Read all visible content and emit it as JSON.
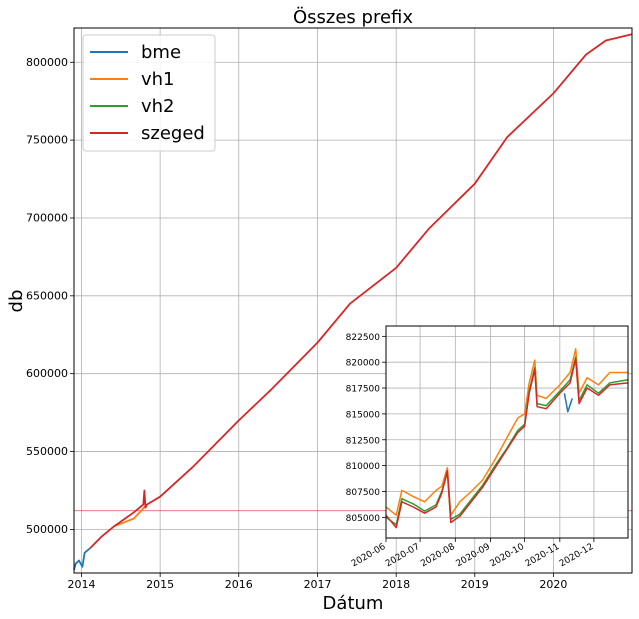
{
  "chart_data": [
    {
      "type": "line",
      "title": "Összes prefix",
      "xlabel": "Dátum",
      "ylabel": "db",
      "x_range": [
        "2013-11-27",
        "2020-12-31"
      ],
      "ylim": [
        472000,
        822000
      ],
      "x_ticks": [
        "2014",
        "2015",
        "2016",
        "2017",
        "2018",
        "2019",
        "2020"
      ],
      "y_ticks": [
        500000,
        550000,
        600000,
        650000,
        700000,
        750000,
        800000
      ],
      "grid": true,
      "legend_position": "top-left",
      "reference_line": {
        "y": 512000,
        "color": "#d62728"
      },
      "series": [
        {
          "name": "bme",
          "color": "#1f77b4",
          "points": [
            [
              "2013-11-27",
              474000
            ],
            [
              "2013-12-05",
              478000
            ],
            [
              "2013-12-20",
              480000
            ],
            [
              "2014-01-05",
              476000
            ],
            [
              "2014-01-15",
              485000
            ],
            [
              "2014-02-10",
              488000
            ]
          ]
        },
        {
          "name": "vh1",
          "color": "#ff7f0e",
          "points": [
            [
              "2014-06-01",
              502000
            ],
            [
              "2014-09-01",
              507000
            ],
            [
              "2014-11-01",
              516000
            ]
          ]
        },
        {
          "name": "vh2",
          "color": "#2ca02c",
          "points": []
        },
        {
          "name": "szeged",
          "color": "#d62728",
          "points": [
            [
              "2014-02-10",
              488000
            ],
            [
              "2014-04-01",
              495000
            ],
            [
              "2014-06-01",
              502000
            ],
            [
              "2014-09-01",
              511000
            ],
            [
              "2014-10-15",
              516000
            ],
            [
              "2014-10-20",
              525000
            ],
            [
              "2014-10-25",
              514000
            ],
            [
              "2014-11-01",
              516000
            ],
            [
              "2015-01-01",
              521000
            ],
            [
              "2015-06-01",
              540000
            ],
            [
              "2016-01-01",
              570000
            ],
            [
              "2016-06-01",
              590000
            ],
            [
              "2017-01-01",
              620000
            ],
            [
              "2017-06-01",
              645000
            ],
            [
              "2018-01-01",
              668000
            ],
            [
              "2018-06-01",
              693000
            ],
            [
              "2019-01-01",
              722000
            ],
            [
              "2019-06-01",
              752000
            ],
            [
              "2020-01-01",
              780000
            ],
            [
              "2020-06-01",
              805000
            ],
            [
              "2020-09-01",
              814000
            ],
            [
              "2020-12-31",
              818000
            ]
          ]
        }
      ]
    },
    {
      "type": "line",
      "title": "",
      "x_range": [
        "2020-06-01",
        "2020-12-31"
      ],
      "ylim": [
        803000,
        823500
      ],
      "x_ticks": [
        "2020-06",
        "2020-07",
        "2020-08",
        "2020-09",
        "2020-10",
        "2020-11",
        "2020-12"
      ],
      "y_ticks": [
        805000,
        807500,
        810000,
        812500,
        815000,
        817500,
        820000,
        822500
      ],
      "grid": true,
      "series": [
        {
          "name": "bme",
          "color": "#1f77b4",
          "points": [
            [
              "2020-11-05",
              817000
            ],
            [
              "2020-11-08",
              815200
            ],
            [
              "2020-11-12",
              816500
            ]
          ]
        },
        {
          "name": "vh1",
          "color": "#ff7f0e",
          "points": [
            [
              "2020-06-01",
              806000
            ],
            [
              "2020-06-10",
              805200
            ],
            [
              "2020-06-15",
              807600
            ],
            [
              "2020-06-25",
              807000
            ],
            [
              "2020-07-05",
              806500
            ],
            [
              "2020-07-15",
              807600
            ],
            [
              "2020-07-20",
              808000
            ],
            [
              "2020-07-25",
              809800
            ],
            [
              "2020-07-28",
              805200
            ],
            [
              "2020-08-05",
              806500
            ],
            [
              "2020-08-15",
              807500
            ],
            [
              "2020-08-25",
              808600
            ],
            [
              "2020-09-05",
              810600
            ],
            [
              "2020-09-15",
              812600
            ],
            [
              "2020-09-25",
              814600
            ],
            [
              "2020-10-01",
              815000
            ],
            [
              "2020-10-05",
              818000
            ],
            [
              "2020-10-10",
              820200
            ],
            [
              "2020-10-12",
              816800
            ],
            [
              "2020-10-20",
              816500
            ],
            [
              "2020-11-01",
              817800
            ],
            [
              "2020-11-10",
              819000
            ],
            [
              "2020-11-15",
              821300
            ],
            [
              "2020-11-18",
              817000
            ],
            [
              "2020-11-25",
              818500
            ],
            [
              "2020-12-05",
              817800
            ],
            [
              "2020-12-15",
              819000
            ],
            [
              "2020-12-31",
              819000
            ]
          ]
        },
        {
          "name": "vh2",
          "color": "#2ca02c",
          "points": [
            [
              "2020-06-01",
              805000
            ],
            [
              "2020-06-10",
              804300
            ],
            [
              "2020-06-15",
              806800
            ],
            [
              "2020-06-25",
              806300
            ],
            [
              "2020-07-05",
              805600
            ],
            [
              "2020-07-15",
              806200
            ],
            [
              "2020-07-20",
              807500
            ],
            [
              "2020-07-25",
              809300
            ],
            [
              "2020-07-28",
              804800
            ],
            [
              "2020-08-05",
              805300
            ],
            [
              "2020-08-15",
              806700
            ],
            [
              "2020-08-25",
              808100
            ],
            [
              "2020-09-05",
              810000
            ],
            [
              "2020-09-15",
              811600
            ],
            [
              "2020-09-25",
              813400
            ],
            [
              "2020-10-01",
              814000
            ],
            [
              "2020-10-05",
              817200
            ],
            [
              "2020-10-10",
              819500
            ],
            [
              "2020-10-12",
              816000
            ],
            [
              "2020-10-20",
              815800
            ],
            [
              "2020-11-01",
              817200
            ],
            [
              "2020-11-10",
              818300
            ],
            [
              "2020-11-15",
              820500
            ],
            [
              "2020-11-18",
              816300
            ],
            [
              "2020-11-25",
              817800
            ],
            [
              "2020-12-05",
              817000
            ],
            [
              "2020-12-15",
              818000
            ],
            [
              "2020-12-31",
              818300
            ]
          ]
        },
        {
          "name": "szeged",
          "color": "#d62728",
          "points": [
            [
              "2020-06-01",
              805200
            ],
            [
              "2020-06-10",
              804000
            ],
            [
              "2020-06-15",
              806500
            ],
            [
              "2020-06-25",
              806000
            ],
            [
              "2020-07-05",
              805400
            ],
            [
              "2020-07-15",
              806000
            ],
            [
              "2020-07-20",
              807300
            ],
            [
              "2020-07-25",
              809500
            ],
            [
              "2020-07-28",
              804500
            ],
            [
              "2020-08-05",
              805100
            ],
            [
              "2020-08-15",
              806500
            ],
            [
              "2020-08-25",
              807900
            ],
            [
              "2020-09-05",
              809800
            ],
            [
              "2020-09-15",
              811500
            ],
            [
              "2020-09-25",
              813200
            ],
            [
              "2020-10-01",
              813800
            ],
            [
              "2020-10-05",
              817000
            ],
            [
              "2020-10-10",
              819300
            ],
            [
              "2020-10-12",
              815700
            ],
            [
              "2020-10-20",
              815500
            ],
            [
              "2020-11-01",
              817000
            ],
            [
              "2020-11-10",
              818000
            ],
            [
              "2020-11-15",
              820300
            ],
            [
              "2020-11-18",
              816000
            ],
            [
              "2020-11-25",
              817500
            ],
            [
              "2020-12-05",
              816800
            ],
            [
              "2020-12-15",
              817800
            ],
            [
              "2020-12-31",
              818000
            ]
          ]
        }
      ]
    }
  ]
}
